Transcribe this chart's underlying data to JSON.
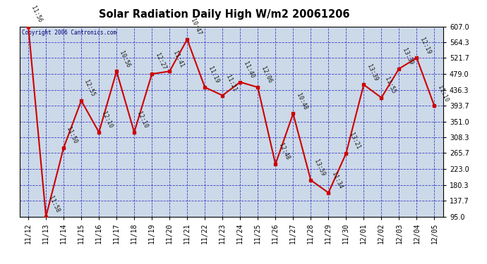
{
  "title": "Solar Radiation Daily High W/m2 20061206",
  "copyright": "Copyright 2006 Cantronics.com",
  "dates": [
    "11/12",
    "11/13",
    "11/14",
    "11/15",
    "11/16",
    "11/17",
    "11/18",
    "11/19",
    "11/20",
    "11/21",
    "11/22",
    "11/23",
    "11/24",
    "11/25",
    "11/26",
    "11/27",
    "11/28",
    "11/29",
    "11/30",
    "12/01",
    "12/02",
    "12/03",
    "12/04",
    "12/05"
  ],
  "values": [
    607.0,
    95.0,
    280.0,
    407.0,
    322.0,
    486.0,
    322.0,
    479.0,
    486.0,
    572.0,
    443.0,
    421.0,
    457.0,
    443.0,
    236.0,
    372.0,
    193.0,
    159.0,
    265.0,
    450.0,
    415.0,
    493.0,
    522.0,
    393.0
  ],
  "labels": [
    "11:56",
    "11:58",
    "11:50",
    "12:55",
    "12:10",
    "10:56",
    "12:10",
    "12:27",
    "11:41",
    "10:47",
    "11:19",
    "11:21",
    "11:40",
    "12:06",
    "12:48",
    "10:48",
    "13:59",
    "11:34",
    "13:21",
    "13:39",
    "11:55",
    "13:39",
    "12:19",
    "11:10"
  ],
  "ylim": [
    95.0,
    607.0
  ],
  "yticks": [
    95.0,
    137.7,
    180.3,
    223.0,
    265.7,
    308.3,
    351.0,
    393.7,
    436.3,
    479.0,
    521.7,
    564.3,
    607.0
  ],
  "line_color": "#cc0000",
  "marker_color": "#cc0000",
  "grid_color": "#0000bb",
  "bg_color": "#ccd9e8",
  "fig_color": "#ffffff",
  "title_color": "#000000",
  "label_color": "#1a1a1a",
  "axis_color": "#000000",
  "copyright_color": "#000080"
}
